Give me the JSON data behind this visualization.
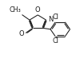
{
  "bg_color": "#ffffff",
  "line_color": "#1a1a1a",
  "figsize": [
    1.05,
    0.78
  ],
  "dpi": 100,
  "xlim": [
    -0.5,
    5.5
  ],
  "ylim": [
    -0.3,
    5.0
  ],
  "lw": 0.75
}
